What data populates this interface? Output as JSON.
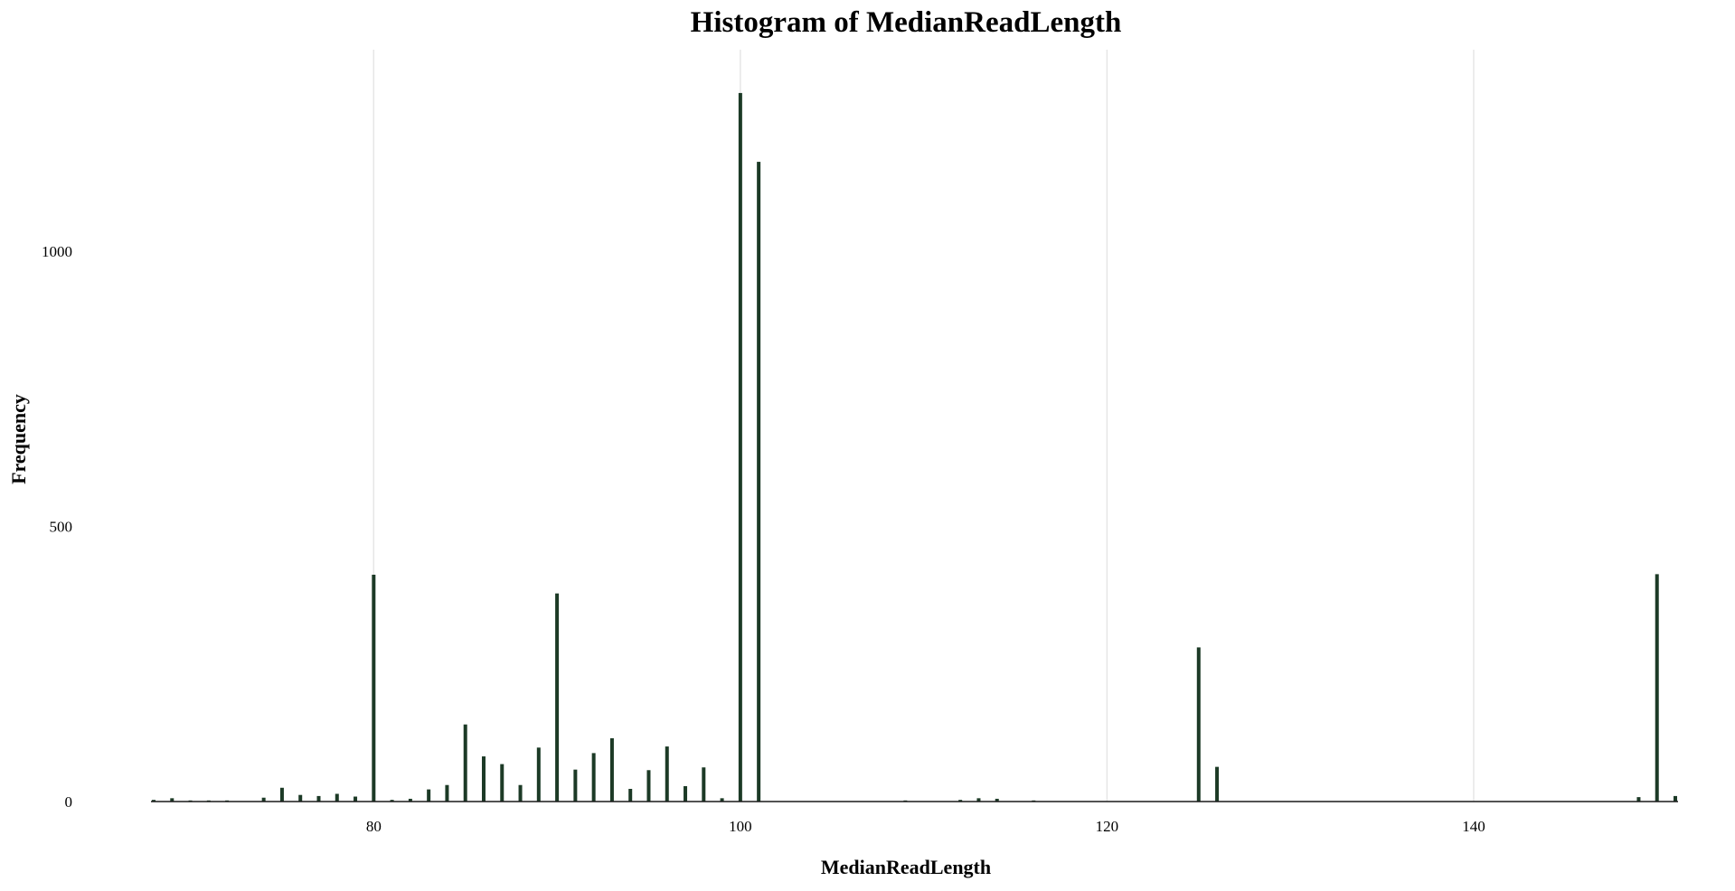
{
  "chart_data": {
    "type": "bar",
    "title": "Histogram of MedianReadLength",
    "xlabel": "MedianReadLength",
    "ylabel": "Frequency",
    "xlim": [
      68,
      151
    ],
    "ylim": [
      0,
      1300
    ],
    "x_ticks": [
      80,
      100,
      120,
      140
    ],
    "y_ticks": [
      0,
      500,
      1000
    ],
    "grid": {
      "vertical": true,
      "horizontal": false
    },
    "bar_color": "#1c3a26",
    "legend": "none",
    "x": [
      68,
      69,
      70,
      71,
      72,
      74,
      75,
      76,
      77,
      78,
      79,
      80,
      81,
      82,
      83,
      84,
      85,
      86,
      87,
      88,
      89,
      90,
      91,
      92,
      93,
      94,
      95,
      96,
      97,
      98,
      99,
      100,
      101,
      109,
      112,
      113,
      114,
      116,
      125,
      126,
      149,
      150,
      151
    ],
    "values": [
      3,
      6,
      2,
      2,
      2,
      7,
      25,
      12,
      10,
      14,
      9,
      412,
      3,
      5,
      22,
      30,
      140,
      82,
      68,
      30,
      98,
      378,
      58,
      88,
      115,
      23,
      57,
      100,
      28,
      62,
      6,
      1287,
      1162,
      2,
      3,
      6,
      5,
      2,
      280,
      63,
      8,
      413,
      10
    ]
  }
}
